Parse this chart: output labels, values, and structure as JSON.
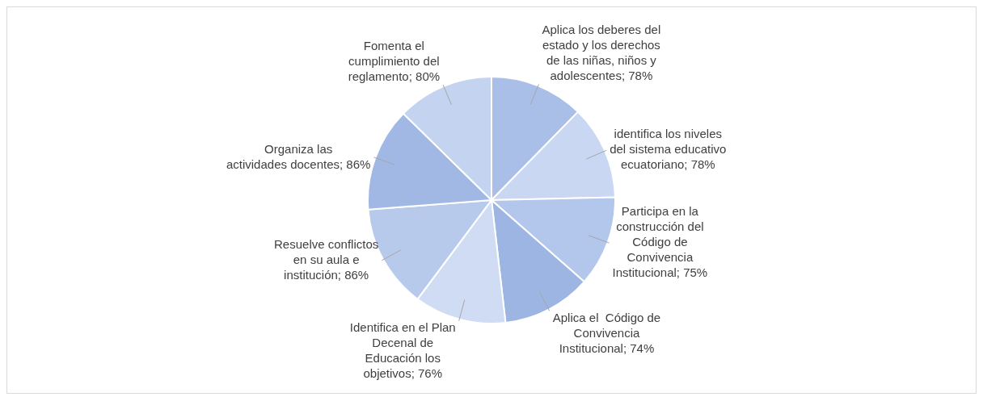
{
  "chart_data": {
    "type": "pie",
    "categories": [
      "Aplica los deberes del estado y los derechos de las niñas, niños y adolescentes",
      "identifica los niveles del sistema educativo ecuatoriano",
      "Participa en la construcción del Código de Convivencia Institucional",
      "Aplica el  Código de Convivencia Institucional",
      "Identifica en el Plan Decenal de Educación los objetivos",
      "Resuelve conflictos en su aula e institución",
      "Organiza las actividades docentes",
      "Fomenta el cumplimiento del reglamento"
    ],
    "values": [
      78,
      78,
      75,
      74,
      76,
      86,
      86,
      80
    ],
    "value_labels": [
      "78%",
      "78%",
      "75%",
      "74%",
      "76%",
      "86%",
      "86%",
      "80%"
    ],
    "colors": [
      "#a9bfe8",
      "#c9d7f2",
      "#b3c6eb",
      "#9db5e3",
      "#d0dcf4",
      "#b8caec",
      "#a1b8e5",
      "#c4d3f0"
    ]
  }
}
